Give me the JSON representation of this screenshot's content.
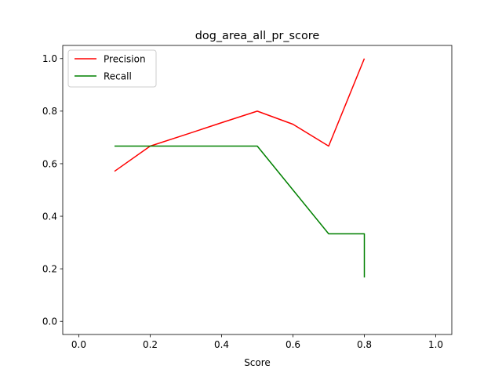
{
  "chart_data": {
    "type": "line",
    "title": "dog_area_all_pr_score",
    "xlabel": "Score",
    "ylabel": "",
    "xlim": [
      -0.045,
      1.045
    ],
    "ylim": [
      -0.05,
      1.05
    ],
    "xticks": [
      "0.0",
      "0.2",
      "0.4",
      "0.6",
      "0.8",
      "1.0"
    ],
    "yticks": [
      "0.0",
      "0.2",
      "0.4",
      "0.6",
      "0.8",
      "1.0"
    ],
    "grid": false,
    "legend_position": "top-left",
    "series": [
      {
        "name": "Precision",
        "color": "#ff0000",
        "x": [
          0.1,
          0.2,
          0.3,
          0.4,
          0.5,
          0.6,
          0.7,
          0.8
        ],
        "y": [
          0.571,
          0.667,
          0.711,
          0.756,
          0.8,
          0.75,
          0.667,
          1.0
        ]
      },
      {
        "name": "Recall",
        "color": "#008000",
        "x": [
          0.1,
          0.2,
          0.3,
          0.4,
          0.5,
          0.6,
          0.7,
          0.8,
          0.8
        ],
        "y": [
          0.667,
          0.667,
          0.667,
          0.667,
          0.667,
          0.5,
          0.333,
          0.333,
          0.167
        ]
      }
    ]
  }
}
